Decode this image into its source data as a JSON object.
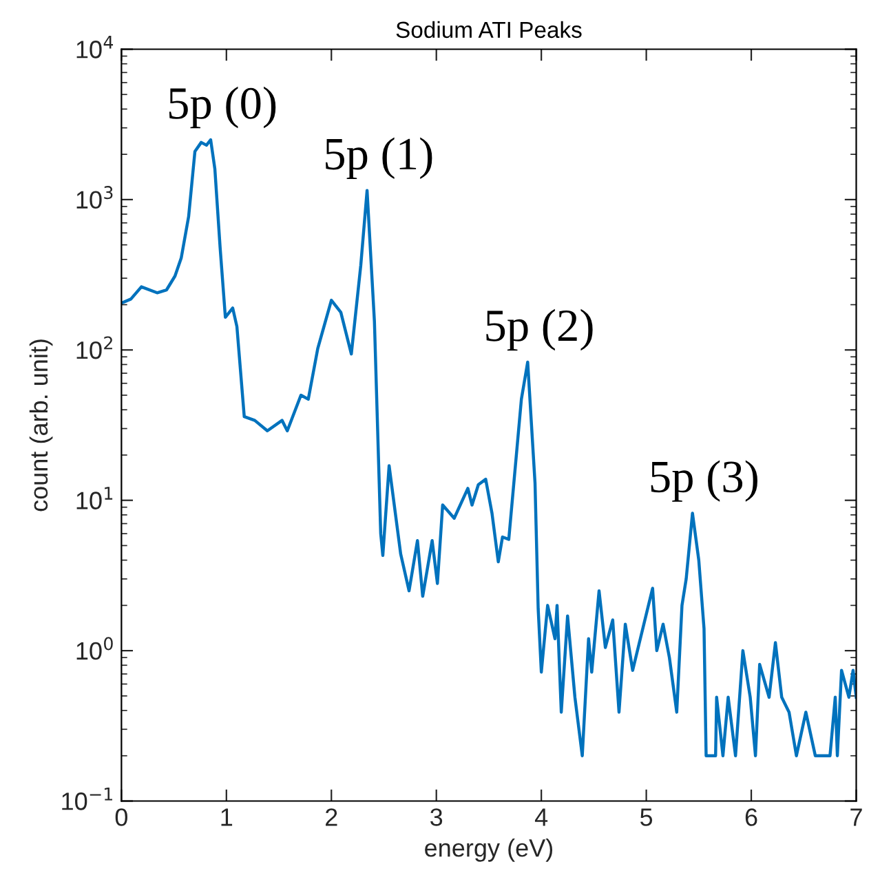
{
  "chart_data": {
    "type": "line",
    "title": "Sodium ATI Peaks",
    "xlabel": "energy (eV)",
    "ylabel": "count (arb. unit)",
    "log": "y",
    "grid": false,
    "legend": false,
    "xlim": [
      0,
      7
    ],
    "xticks": [
      0,
      1,
      2,
      3,
      4,
      5,
      6,
      7
    ],
    "ylim": [
      0.1,
      10000
    ],
    "yticks": [
      {
        "value": 0.1,
        "label": "10$^{−1}$"
      },
      {
        "value": 1,
        "label": "10$^{0}$"
      },
      {
        "value": 10,
        "label": "10$^{1}$"
      },
      {
        "value": 100,
        "label": "10$^{2}$"
      },
      {
        "value": 1000,
        "label": "10$^{3}$"
      },
      {
        "value": 10000,
        "label": "10$^{4}$"
      }
    ],
    "series": [
      {
        "color": "#0072bd",
        "x": [
          0,
          0.09,
          0.19,
          0.34,
          0.43,
          0.51,
          0.57,
          0.64,
          0.7,
          0.76,
          0.81,
          0.85,
          0.89,
          0.94,
          0.99,
          1.06,
          1.1,
          1.17,
          1.27,
          1.39,
          1.53,
          1.58,
          1.71,
          1.78,
          1.87,
          2.0,
          2.09,
          2.19,
          2.28,
          2.34,
          2.41,
          2.47,
          2.49,
          2.55,
          2.66,
          2.74,
          2.82,
          2.87,
          2.96,
          3.01,
          3.06,
          3.17,
          3.3,
          3.34,
          3.4,
          3.47,
          3.53,
          3.59,
          3.63,
          3.69,
          3.81,
          3.87,
          3.94,
          3.97,
          4.0,
          4.06,
          4.13,
          4.15,
          4.19,
          4.25,
          4.32,
          4.39,
          4.45,
          4.48,
          4.55,
          4.61,
          4.68,
          4.74,
          4.8,
          4.87,
          4.93,
          5.06,
          5.1,
          5.16,
          5.22,
          5.29,
          5.34,
          5.38,
          5.44,
          5.5,
          5.55,
          5.57,
          5.66,
          5.67,
          5.73,
          5.78,
          5.85,
          5.92,
          5.99,
          6.04,
          6.08,
          6.17,
          6.23,
          6.29,
          6.36,
          6.43,
          6.52,
          6.61,
          6.75,
          6.8,
          6.82,
          6.86,
          6.93,
          6.97,
          7.0
        ],
        "values": [
          205,
          218,
          263,
          240,
          251,
          310,
          410,
          770,
          2090,
          2400,
          2300,
          2500,
          1600,
          480,
          165,
          190,
          143,
          36,
          34,
          29,
          34,
          29,
          50,
          47,
          102,
          214,
          178,
          94,
          365,
          1150,
          155,
          6,
          4.3,
          17,
          4.4,
          2.5,
          5.4,
          2.3,
          5.4,
          2.8,
          9.3,
          7.6,
          12,
          9.3,
          12.7,
          13.8,
          8.2,
          3.9,
          5.7,
          5.5,
          47,
          83,
          13,
          1.9,
          0.72,
          2.0,
          1.2,
          2.0,
          0.39,
          1.7,
          0.49,
          0.2,
          1.2,
          0.72,
          2.5,
          1.05,
          1.6,
          0.39,
          1.5,
          0.74,
          1.1,
          2.6,
          1.0,
          1.5,
          0.9,
          0.39,
          2.0,
          3.0,
          8.2,
          4.0,
          1.4,
          0.2,
          0.2,
          0.49,
          0.2,
          0.49,
          0.2,
          1.0,
          0.49,
          0.2,
          0.81,
          0.49,
          1.13,
          0.49,
          0.39,
          0.2,
          0.39,
          0.2,
          0.2,
          0.49,
          0.2,
          0.74,
          0.49,
          0.74,
          0.49
        ]
      }
    ],
    "annotations": [
      {
        "text": "5p (0)",
        "x": 0.85,
        "y": 2500
      },
      {
        "text": "5p (1)",
        "x": 2.34,
        "y": 1150
      },
      {
        "text": "5p (2)",
        "x": 3.87,
        "y": 83
      },
      {
        "text": "5p (3)",
        "x": 5.44,
        "y": 8.2
      }
    ]
  }
}
